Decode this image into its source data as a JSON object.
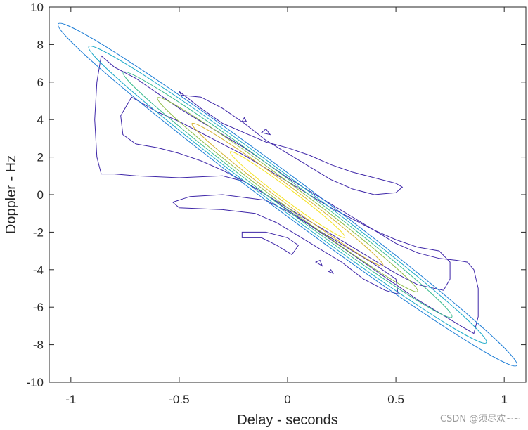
{
  "chart_data": {
    "type": "contour",
    "title": "",
    "xlabel": "Delay - seconds",
    "ylabel": "Doppler - Hz",
    "xlim": [
      -1.1,
      1.1
    ],
    "ylim": [
      -10,
      10
    ],
    "xticks": [
      -1,
      -0.5,
      0,
      0.5,
      1
    ],
    "xtick_labels": [
      "-1",
      "-0.5",
      "0",
      "0.5",
      "1"
    ],
    "yticks": [
      -10,
      -8,
      -6,
      -4,
      -2,
      0,
      2,
      4,
      6,
      8,
      10
    ],
    "ytick_labels": [
      "-10",
      "-8",
      "-6",
      "-4",
      "-2",
      "0",
      "2",
      "4",
      "6",
      "8",
      "10"
    ],
    "grid": false,
    "legend": false,
    "colormap": "parula",
    "contour_levels": [
      {
        "color": "#3e26a8",
        "polygon": [
          [
            -0.86,
            7.4
          ],
          [
            -0.8,
            6.8
          ],
          [
            -0.7,
            6.2
          ],
          [
            -0.6,
            5.4
          ],
          [
            -0.5,
            4.6
          ],
          [
            -0.4,
            3.9
          ],
          [
            -0.3,
            3.2
          ],
          [
            -0.2,
            2.5
          ],
          [
            -0.1,
            1.7
          ],
          [
            0,
            0.9
          ],
          [
            0.1,
            0.2
          ],
          [
            0.2,
            -0.5
          ],
          [
            0.3,
            -1.2
          ],
          [
            0.4,
            -1.9
          ],
          [
            0.5,
            -2.6
          ],
          [
            0.6,
            -3.1
          ],
          [
            0.7,
            -3.4
          ],
          [
            0.78,
            -3.5
          ],
          [
            0.83,
            -3.6
          ],
          [
            0.86,
            -4
          ],
          [
            0.88,
            -5
          ],
          [
            0.88,
            -6.5
          ],
          [
            0.86,
            -7.4
          ],
          [
            0.8,
            -7
          ],
          [
            0.7,
            -6.3
          ],
          [
            0.6,
            -5.6
          ],
          [
            0.5,
            -4.8
          ],
          [
            0.4,
            -4
          ],
          [
            0.3,
            -3.2
          ],
          [
            0.2,
            -2.4
          ],
          [
            0.1,
            -1.6
          ],
          [
            0,
            -0.8
          ],
          [
            -0.1,
            0
          ],
          [
            -0.2,
            0.7
          ],
          [
            -0.3,
            1
          ],
          [
            -0.5,
            0.9
          ],
          [
            -0.7,
            1
          ],
          [
            -0.8,
            1.1
          ],
          [
            -0.86,
            1.1
          ],
          [
            -0.88,
            2
          ],
          [
            -0.89,
            4
          ],
          [
            -0.88,
            6
          ]
        ]
      },
      {
        "color": "#3e26a8",
        "polygon": [
          [
            -0.5,
            5.5
          ],
          [
            -0.4,
            4.6
          ],
          [
            -0.3,
            3.8
          ],
          [
            -0.2,
            3.3
          ],
          [
            -0.1,
            2.8
          ],
          [
            0,
            2.5
          ],
          [
            0.1,
            2.1
          ],
          [
            0.2,
            1.6
          ],
          [
            0.3,
            1.2
          ],
          [
            0.4,
            0.9
          ],
          [
            0.5,
            0.6
          ],
          [
            0.53,
            0.4
          ],
          [
            0.5,
            0.1
          ],
          [
            0.4,
            0
          ],
          [
            0.3,
            0.3
          ],
          [
            0.2,
            0.8
          ],
          [
            0.1,
            1.5
          ],
          [
            0,
            2.2
          ],
          [
            -0.1,
            2.9
          ],
          [
            -0.2,
            3.8
          ],
          [
            -0.3,
            4.6
          ],
          [
            -0.4,
            5.2
          ],
          [
            -0.49,
            5.3
          ]
        ]
      },
      {
        "color": "#3e26a8",
        "polygon": [
          [
            -0.53,
            -0.4
          ],
          [
            -0.45,
            -0.1
          ],
          [
            -0.3,
            0
          ],
          [
            -0.1,
            -0.3
          ],
          [
            0,
            -0.9
          ],
          [
            0.1,
            -1.6
          ],
          [
            0.2,
            -2.3
          ],
          [
            0.3,
            -3
          ],
          [
            0.4,
            -3.7
          ],
          [
            0.5,
            -4.5
          ],
          [
            0.51,
            -5.3
          ],
          [
            0.45,
            -5.1
          ],
          [
            0.35,
            -4.5
          ],
          [
            0.25,
            -3.6
          ],
          [
            0.15,
            -2.9
          ],
          [
            0.05,
            -2.2
          ],
          [
            -0.05,
            -1.5
          ],
          [
            -0.15,
            -1
          ],
          [
            -0.3,
            -0.8
          ],
          [
            -0.5,
            -0.7
          ]
        ]
      },
      {
        "color": "#3e26a8",
        "polygon": [
          [
            -0.21,
            -2
          ],
          [
            -0.1,
            -2
          ],
          [
            0,
            -2.3
          ],
          [
            0.05,
            -2.7
          ],
          [
            0.02,
            -3.2
          ],
          [
            -0.05,
            -2.7
          ],
          [
            -0.12,
            -2.3
          ],
          [
            -0.21,
            -2.3
          ]
        ]
      },
      {
        "color": "#3e26a8",
        "polygon": [
          [
            -0.2,
            4.1
          ],
          [
            -0.19,
            3.9
          ],
          [
            -0.21,
            3.9
          ]
        ]
      },
      {
        "color": "#3e26a8",
        "polygon": [
          [
            -0.1,
            3.5
          ],
          [
            -0.08,
            3.2
          ],
          [
            -0.12,
            3.3
          ]
        ]
      },
      {
        "color": "#3e26a8",
        "polygon": [
          [
            0.2,
            -4
          ],
          [
            0.21,
            -4.2
          ],
          [
            0.19,
            -4.1
          ]
        ]
      },
      {
        "color": "#3e26a8",
        "polygon": [
          [
            0.15,
            -3.5
          ],
          [
            0.16,
            -3.8
          ],
          [
            0.13,
            -3.6
          ]
        ]
      },
      {
        "color": "#3e26a8",
        "polygon": [
          [
            -0.72,
            5.2
          ],
          [
            -0.6,
            4.4
          ],
          [
            -0.5,
            3.9
          ],
          [
            -0.4,
            3.3
          ],
          [
            -0.3,
            2.7
          ],
          [
            -0.2,
            2.1
          ],
          [
            -0.1,
            1.4
          ],
          [
            0,
            0.7
          ],
          [
            0.1,
            0
          ],
          [
            0.2,
            -0.7
          ],
          [
            0.3,
            -1.3
          ],
          [
            0.4,
            -1.9
          ],
          [
            0.5,
            -2.4
          ],
          [
            0.6,
            -2.8
          ],
          [
            0.7,
            -3
          ],
          [
            0.75,
            -3.6
          ],
          [
            0.75,
            -4.5
          ],
          [
            0.72,
            -5.1
          ],
          [
            0.6,
            -4.8
          ],
          [
            0.5,
            -4.2
          ],
          [
            0.4,
            -3.5
          ],
          [
            0.3,
            -2.8
          ],
          [
            0.2,
            -2.1
          ],
          [
            0.1,
            -1.4
          ],
          [
            0,
            -0.7
          ],
          [
            -0.1,
            0
          ],
          [
            -0.2,
            0.7
          ],
          [
            -0.3,
            1.3
          ],
          [
            -0.4,
            1.8
          ],
          [
            -0.5,
            2.2
          ],
          [
            -0.6,
            2.5
          ],
          [
            -0.7,
            2.7
          ],
          [
            -0.76,
            3.2
          ],
          [
            -0.77,
            4.2
          ]
        ]
      }
    ]
  },
  "watermark": "CSDN @须尽欢~~"
}
